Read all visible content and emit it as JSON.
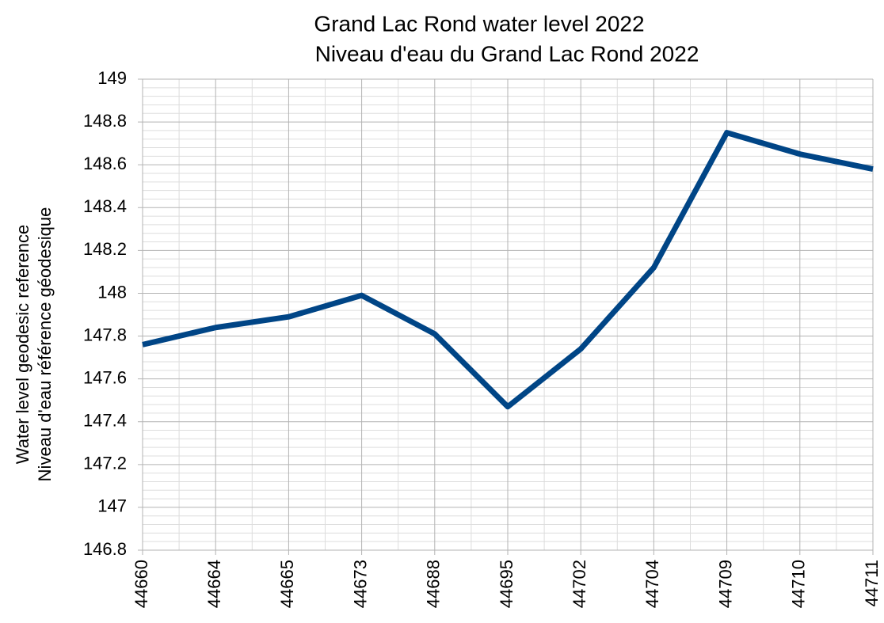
{
  "chart_data": {
    "type": "line",
    "title": "Grand Lac Rond water level 2022",
    "subtitle": "Niveau d'eau du Grand Lac Rond 2022",
    "ylabel": [
      "Water level geodesic reference",
      "Niveau d'eau référence géodesique"
    ],
    "categories": [
      "44660",
      "44664",
      "44665",
      "44673",
      "44688",
      "44695",
      "44702",
      "44704",
      "44709",
      "44710",
      "44711"
    ],
    "series": [
      {
        "name": "Water level",
        "color": "#004586",
        "values": [
          147.76,
          147.84,
          147.89,
          147.99,
          147.81,
          147.47,
          147.74,
          148.12,
          148.75,
          148.65,
          148.58
        ]
      }
    ],
    "ylim": [
      146.8,
      149
    ],
    "yticks": [
      146.8,
      147,
      147.2,
      147.4,
      147.6,
      147.8,
      148,
      148.2,
      148.4,
      148.6,
      148.8,
      149
    ],
    "grid": true
  }
}
